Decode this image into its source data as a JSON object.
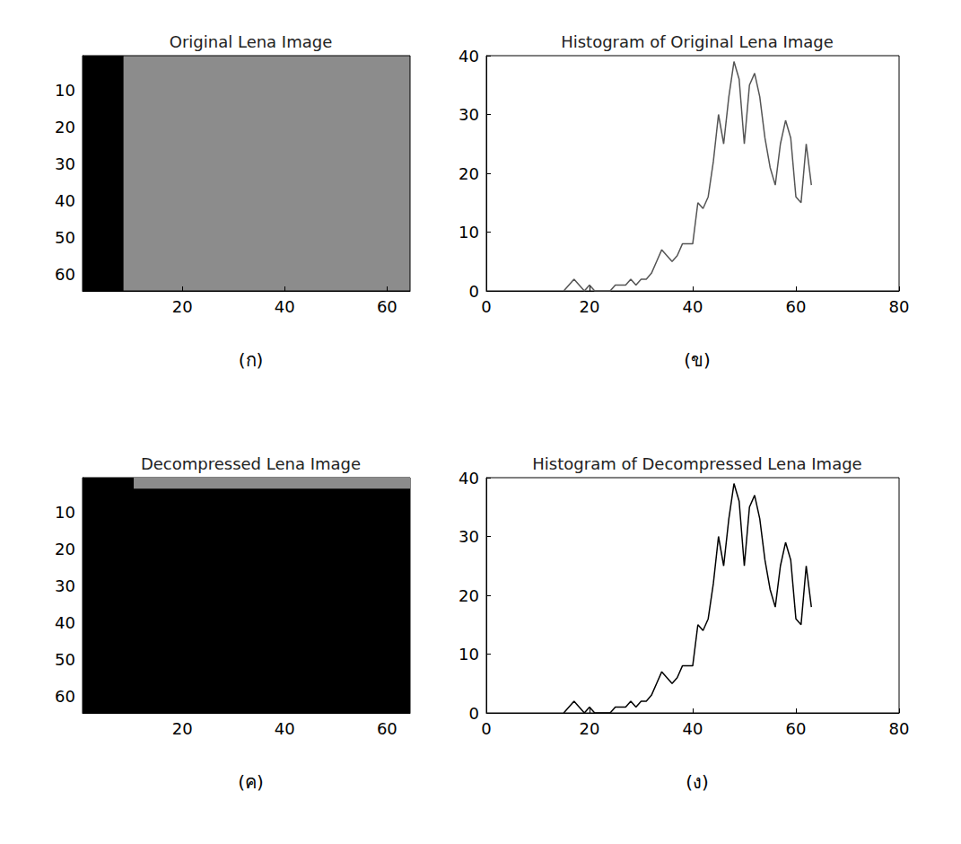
{
  "chart_data": [
    {
      "type": "image",
      "title": "Original Lena Image",
      "caption": "(ก)",
      "color": "#8c8c8c",
      "xlim": [
        0.5,
        64.5
      ],
      "xticks": [
        20,
        40,
        60
      ],
      "ylim": [
        0.5,
        64.5
      ],
      "yticks": [
        10,
        20,
        30,
        40,
        50,
        60
      ],
      "regions": [
        {
          "x": [
            0.5,
            8.5
          ],
          "y": [
            0.5,
            64.5
          ],
          "color": "#000000"
        }
      ]
    },
    {
      "type": "line",
      "title": "Histogram of Original Lena Image",
      "caption": "(ข)",
      "color": "#555555",
      "xlim": [
        0,
        80
      ],
      "xticks": [
        0,
        20,
        40,
        60,
        80
      ],
      "ylim": [
        0,
        40
      ],
      "yticks": [
        0,
        10,
        20,
        30,
        40
      ],
      "x": [
        15,
        16,
        17,
        18,
        19,
        20,
        21,
        22,
        23,
        24,
        25,
        26,
        27,
        28,
        29,
        30,
        31,
        32,
        33,
        34,
        35,
        36,
        37,
        38,
        39,
        40,
        41,
        42,
        43,
        44,
        45,
        46,
        47,
        48,
        49,
        50,
        51,
        52,
        53,
        54,
        55,
        56,
        57,
        58,
        59,
        60,
        61,
        62,
        63
      ],
      "values": [
        0,
        1,
        2,
        1,
        0,
        1,
        0,
        0,
        0,
        0,
        1,
        1,
        1,
        2,
        1,
        2,
        2,
        3,
        5,
        7,
        6,
        5,
        6,
        8,
        8,
        8,
        15,
        14,
        16,
        22,
        30,
        25,
        33,
        39,
        36,
        25,
        35,
        37,
        33,
        26,
        21,
        18,
        25,
        29,
        26,
        16,
        15,
        25,
        18
      ]
    },
    {
      "type": "image",
      "title": "Decompressed Lena Image",
      "caption": "(ค)",
      "color": "#000000",
      "xlim": [
        0.5,
        64.5
      ],
      "xticks": [
        20,
        40,
        60
      ],
      "ylim": [
        0.5,
        64.5
      ],
      "yticks": [
        10,
        20,
        30,
        40,
        50,
        60
      ],
      "regions": [
        {
          "x": [
            10.5,
            64.5
          ],
          "y": [
            0.5,
            3.5
          ],
          "color": "#8c8c8c"
        }
      ]
    },
    {
      "type": "line",
      "title": "Histogram of Decompressed Lena Image",
      "caption": "(ง)",
      "color": "#000000",
      "xlim": [
        0,
        80
      ],
      "xticks": [
        0,
        20,
        40,
        60,
        80
      ],
      "ylim": [
        0,
        40
      ],
      "yticks": [
        0,
        10,
        20,
        30,
        40
      ],
      "x": [
        15,
        16,
        17,
        18,
        19,
        20,
        21,
        22,
        23,
        24,
        25,
        26,
        27,
        28,
        29,
        30,
        31,
        32,
        33,
        34,
        35,
        36,
        37,
        38,
        39,
        40,
        41,
        42,
        43,
        44,
        45,
        46,
        47,
        48,
        49,
        50,
        51,
        52,
        53,
        54,
        55,
        56,
        57,
        58,
        59,
        60,
        61,
        62,
        63
      ],
      "values": [
        0,
        1,
        2,
        1,
        0,
        1,
        0,
        0,
        0,
        0,
        1,
        1,
        1,
        2,
        1,
        2,
        2,
        3,
        5,
        7,
        6,
        5,
        6,
        8,
        8,
        8,
        15,
        14,
        16,
        22,
        30,
        25,
        33,
        39,
        36,
        25,
        35,
        37,
        33,
        26,
        21,
        18,
        25,
        29,
        26,
        16,
        15,
        25,
        18
      ]
    }
  ]
}
